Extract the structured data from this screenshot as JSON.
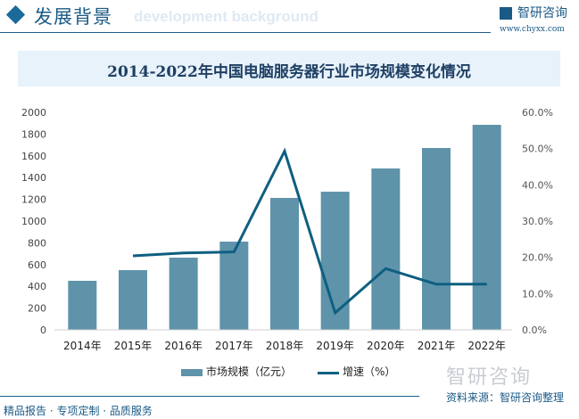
{
  "header": {
    "title": "发展背景",
    "subtitle": "development background",
    "brand": "智研咨询",
    "url": "www.chyxx.com"
  },
  "chart_data": {
    "type": "bar+line",
    "title": "2014-2022年中国电脑服务器行业市场规模变化情况",
    "categories": [
      "2014年",
      "2015年",
      "2016年",
      "2017年",
      "2018年",
      "2019年",
      "2020年",
      "2021年",
      "2022年"
    ],
    "series": [
      {
        "name": "市场规模（亿元）",
        "type": "bar",
        "axis": "left",
        "color": "#5e93aa",
        "values": [
          451,
          549,
          664,
          811,
          1213,
          1270,
          1484,
          1672,
          1885
        ]
      },
      {
        "name": "增速（%）",
        "type": "line",
        "axis": "right",
        "color": "#0e5f80",
        "values": [
          null,
          20.4,
          21.2,
          21.5,
          49.3,
          4.7,
          16.9,
          12.6,
          12.6
        ]
      }
    ],
    "y_left": {
      "range": [
        0,
        2000
      ],
      "ticks": [
        "0",
        "200",
        "400",
        "600",
        "800",
        "1000",
        "1200",
        "1400",
        "1600",
        "1800",
        "2000"
      ]
    },
    "y_right": {
      "range": [
        0,
        60
      ],
      "ticks": [
        "0.0%",
        "10.0%",
        "20.0%",
        "30.0%",
        "40.0%",
        "50.0%",
        "60.0%"
      ]
    },
    "grid": false,
    "legend_position": "bottom"
  },
  "footer": {
    "left": "精品报告 · 专项定制 · 品质服务",
    "source": "资料来源：智研咨询整理",
    "watermark": "智研咨询"
  }
}
